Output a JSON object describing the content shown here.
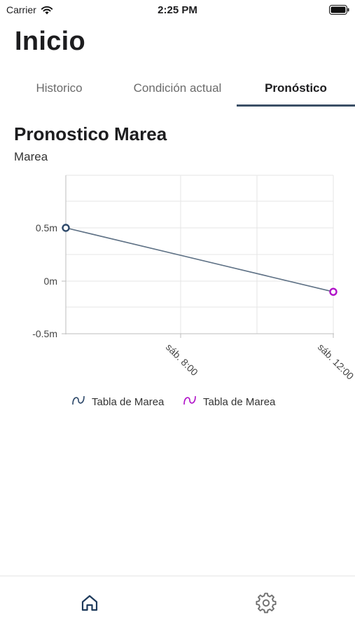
{
  "status_bar": {
    "carrier": "Carrier",
    "time": "2:25 PM"
  },
  "page": {
    "title": "Inicio"
  },
  "tabs": [
    {
      "label": "Historico",
      "active": false
    },
    {
      "label": "Condición actual",
      "active": false
    },
    {
      "label": "Pronóstico",
      "active": true
    }
  ],
  "section": {
    "title": "Pronostico Marea",
    "subtitle": "Marea"
  },
  "chart_data": {
    "type": "line",
    "x_ticks": [
      "sáb. 8:00",
      "sáb. 12:00"
    ],
    "y_ticks": [
      "0.5m",
      "0m",
      "-0.5m"
    ],
    "ylim": [
      -0.5,
      1.0
    ],
    "grid": true,
    "legend_position": "bottom",
    "series": [
      {
        "name": "Tabla de Marea",
        "color": "#2f4a6b",
        "points": [
          {
            "x": "sáb. 6:00",
            "y": 0.5
          }
        ]
      },
      {
        "name": "Tabla de Marea",
        "color": "#b012c8",
        "points": [
          {
            "x": "sáb. 12:00",
            "y": -0.1
          }
        ]
      }
    ],
    "line": {
      "color": "#5e7185",
      "from": {
        "x": "sáb. 6:00",
        "y": 0.5
      },
      "to": {
        "x": "sáb. 12:00",
        "y": -0.1
      }
    }
  },
  "nav": [
    {
      "icon": "home-icon",
      "active": true
    },
    {
      "icon": "gear-icon",
      "active": false
    }
  ],
  "colors": {
    "accent": "#3b4f66",
    "active_nav": "#1f3b5c",
    "inactive_nav": "#6f6f6f"
  }
}
